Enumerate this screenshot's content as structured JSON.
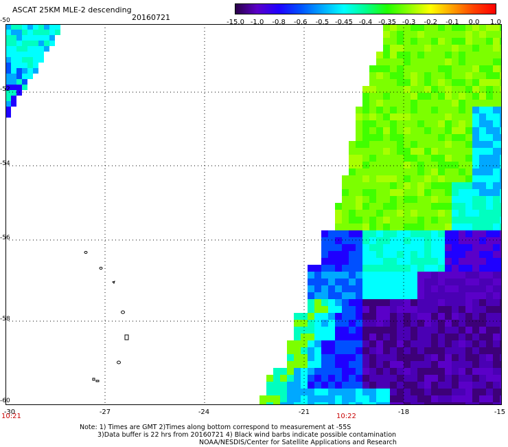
{
  "header": {
    "title": "ASCAT 25KM MLE-2 descending",
    "date": "20160721"
  },
  "colorbar": {
    "labels": [
      "-15.0",
      "-1.0",
      "-0.8",
      "-0.6",
      "-0.5",
      "-0.45",
      "-0.4",
      "-0.35",
      "-0.3",
      "-0.2",
      "-0.1",
      "0.0",
      "1.0"
    ],
    "colors": [
      "#2a0048",
      "#5a00c8",
      "#1f00ff",
      "#0050ff",
      "#00a8ff",
      "#00ffff",
      "#00ff90",
      "#20ff00",
      "#8cff00",
      "#ffff00",
      "#ffa000",
      "#ff4000",
      "#ff0000"
    ]
  },
  "map": {
    "lat_labels": [
      "-50",
      "-52",
      "-54",
      "-56",
      "-58",
      "-60"
    ],
    "lon_labels": [
      "-30",
      "-27",
      "-24",
      "-21",
      "-18",
      "-15"
    ],
    "lat_range": [
      -60,
      -50
    ],
    "lon_range": [
      -30,
      -15
    ],
    "grid": "dotted"
  },
  "times": {
    "left": "10:21",
    "mid": "10:22"
  },
  "notes": {
    "line1": "Note: 1) Times are GMT 2)Times along bottom correspond to measurement at -55S",
    "line2": "3)Data buffer is 22 hrs from 20160721 4) Black wind barbs indicate possible contamination",
    "line3": "NOAA/NESDIS/Center for Satellite Applications and Research"
  }
}
